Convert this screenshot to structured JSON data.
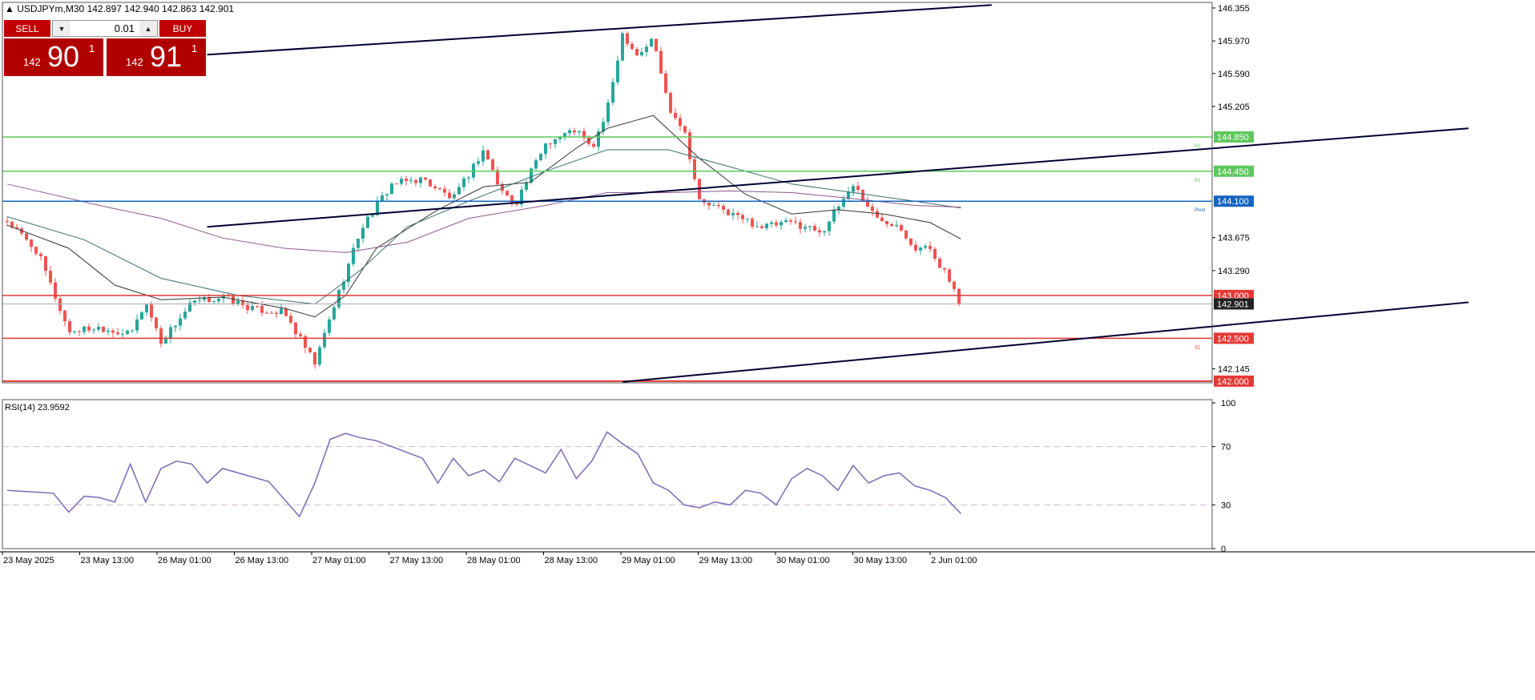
{
  "header": {
    "symbol_text": "▲ USDJPYm,M30  142.897 142.940 142.863 142.901"
  },
  "trade_panel": {
    "sell_label": "SELL",
    "buy_label": "BUY",
    "volume": "0.01",
    "sell_price_small": "142",
    "sell_price_big": "90",
    "sell_price_sup": "1",
    "buy_price_small": "142",
    "buy_price_big": "91",
    "buy_price_sup": "1"
  },
  "colors": {
    "bull": "#26a69a",
    "bear": "#ef5350",
    "resistance": "#5cc85c",
    "pivot": "#1565c0",
    "support": "#e53935",
    "trend": "#000033",
    "rsi": "#7b68b5",
    "level_line": "#d8b4d8"
  },
  "chart_data": [
    {
      "type": "candlestick",
      "symbol": "USDJPYm",
      "timeframe": "M30",
      "y_ticks": [
        146.355,
        145.97,
        145.59,
        145.205,
        143.675,
        143.29,
        142.145
      ],
      "ylim": [
        141.98,
        146.42
      ],
      "x_tick_labels": [
        "23 May 2025",
        "23 May 13:00",
        "26 May 01:00",
        "26 May 13:00",
        "27 May 01:00",
        "27 May 13:00",
        "28 May 01:00",
        "28 May 13:00",
        "29 May 01:00",
        "29 May 13:00",
        "30 May 01:00",
        "30 May 13:00",
        "2 Jun 01:00"
      ],
      "current_price": "142.901",
      "horizontal_levels": [
        {
          "price": 144.85,
          "label": "144.850",
          "tag": "R2",
          "kind": "resistance"
        },
        {
          "price": 144.45,
          "label": "144.450",
          "tag": "R1",
          "kind": "resistance"
        },
        {
          "price": 144.1,
          "label": "144.100",
          "tag": "Pivot",
          "kind": "pivot"
        },
        {
          "price": 143.0,
          "label": "143.000",
          "tag": "",
          "kind": "support"
        },
        {
          "price": 142.5,
          "label": "142.500",
          "tag": "S1",
          "kind": "support"
        },
        {
          "price": 142.0,
          "label": "142.000",
          "tag": "",
          "kind": "support"
        }
      ],
      "trendlines": [
        {
          "name": "upper-channel",
          "x0": 26,
          "y0": 145.81,
          "x1": 128,
          "y1": 146.39
        },
        {
          "name": "middle-channel",
          "x0": 26,
          "y0": 143.8,
          "x1": 190,
          "y1": 144.95
        },
        {
          "name": "lower-channel",
          "x0": 80,
          "y0": 141.99,
          "x1": 190,
          "y1": 142.92
        }
      ],
      "close_path": [
        [
          0,
          143.87
        ],
        [
          4,
          143.5
        ],
        [
          8,
          142.58
        ],
        [
          12,
          142.63
        ],
        [
          16,
          142.54
        ],
        [
          18,
          142.92
        ],
        [
          20,
          142.46
        ],
        [
          24,
          142.91
        ],
        [
          28,
          142.98
        ],
        [
          32,
          142.84
        ],
        [
          36,
          142.8
        ],
        [
          38,
          142.5
        ],
        [
          40,
          142.2
        ],
        [
          42,
          142.75
        ],
        [
          46,
          143.78
        ],
        [
          50,
          144.3
        ],
        [
          54,
          144.36
        ],
        [
          58,
          144.12
        ],
        [
          62,
          144.71
        ],
        [
          64,
          144.25
        ],
        [
          66,
          144.06
        ],
        [
          70,
          144.78
        ],
        [
          74,
          144.94
        ],
        [
          76,
          144.7
        ],
        [
          78,
          145.15
        ],
        [
          80,
          146.06
        ],
        [
          82,
          145.8
        ],
        [
          84,
          146.0
        ],
        [
          86,
          145.2
        ],
        [
          88,
          144.95
        ],
        [
          90,
          144.1
        ],
        [
          94,
          143.96
        ],
        [
          98,
          143.8
        ],
        [
          102,
          143.85
        ],
        [
          106,
          143.75
        ],
        [
          110,
          144.3
        ],
        [
          113,
          143.9
        ],
        [
          116,
          143.83
        ],
        [
          118,
          143.55
        ],
        [
          120,
          143.55
        ],
        [
          122,
          143.25
        ],
        [
          124,
          142.901
        ]
      ],
      "moving_averages": [
        {
          "name": "ma-fast",
          "color": "#333333",
          "points": [
            [
              0,
              143.82
            ],
            [
              8,
              143.55
            ],
            [
              14,
              143.12
            ],
            [
              20,
              142.95
            ],
            [
              28,
              142.98
            ],
            [
              36,
              142.85
            ],
            [
              40,
              142.75
            ],
            [
              44,
              143.0
            ],
            [
              48,
              143.55
            ],
            [
              56,
              144.0
            ],
            [
              62,
              144.27
            ],
            [
              68,
              144.32
            ],
            [
              74,
              144.72
            ],
            [
              78,
              144.95
            ],
            [
              84,
              145.1
            ],
            [
              90,
              144.6
            ],
            [
              96,
              144.18
            ],
            [
              102,
              143.95
            ],
            [
              108,
              144.0
            ],
            [
              114,
              143.95
            ],
            [
              120,
              143.85
            ],
            [
              124,
              143.66
            ]
          ]
        },
        {
          "name": "ma-mid",
          "color": "#3a6f6f",
          "points": [
            [
              0,
              143.92
            ],
            [
              10,
              143.65
            ],
            [
              20,
              143.2
            ],
            [
              30,
              143.0
            ],
            [
              40,
              142.9
            ],
            [
              46,
              143.3
            ],
            [
              52,
              143.8
            ],
            [
              60,
              144.1
            ],
            [
              70,
              144.45
            ],
            [
              78,
              144.7
            ],
            [
              86,
              144.7
            ],
            [
              94,
              144.5
            ],
            [
              102,
              144.3
            ],
            [
              110,
              144.2
            ],
            [
              118,
              144.1
            ],
            [
              124,
              144.02
            ]
          ]
        },
        {
          "name": "ma-slow",
          "color": "#8c5a8c",
          "points": [
            [
              0,
              144.3
            ],
            [
              12,
              144.05
            ],
            [
              20,
              143.9
            ],
            [
              28,
              143.67
            ],
            [
              36,
              143.55
            ],
            [
              44,
              143.5
            ],
            [
              52,
              143.62
            ],
            [
              60,
              143.9
            ],
            [
              70,
              144.05
            ],
            [
              78,
              144.2
            ],
            [
              86,
              144.2
            ],
            [
              94,
              144.22
            ],
            [
              102,
              144.2
            ],
            [
              110,
              144.13
            ],
            [
              118,
              144.05
            ],
            [
              124,
              144.03
            ]
          ]
        }
      ]
    },
    {
      "type": "line",
      "title": "RSI(14) 23.9592",
      "y_ticks": [
        100,
        70,
        30,
        0
      ],
      "ylim": [
        0,
        100
      ],
      "levels": [
        70,
        30
      ],
      "x": [
        0,
        6,
        8,
        10,
        12,
        14,
        16,
        18,
        20,
        22,
        24,
        26,
        28,
        30,
        34,
        38,
        40,
        42,
        44,
        46,
        48,
        50,
        52,
        54,
        56,
        58,
        60,
        62,
        64,
        66,
        70,
        72,
        74,
        76,
        78,
        80,
        82,
        84,
        86,
        88,
        90,
        92,
        94,
        96,
        98,
        100,
        102,
        104,
        106,
        108,
        110,
        112,
        114,
        116,
        118,
        120,
        122,
        124
      ],
      "values": [
        40,
        38,
        25,
        36,
        35,
        32,
        58,
        32,
        55,
        60,
        58,
        45,
        55,
        52,
        46,
        22,
        45,
        75,
        79,
        76,
        74,
        70,
        66,
        62,
        45,
        62,
        50,
        54,
        46,
        62,
        52,
        68,
        48,
        60,
        80,
        72,
        65,
        45,
        40,
        30,
        28,
        32,
        30,
        40,
        38,
        30,
        48,
        55,
        50,
        40,
        57,
        45,
        50,
        52,
        43,
        40,
        35,
        24
      ]
    }
  ]
}
